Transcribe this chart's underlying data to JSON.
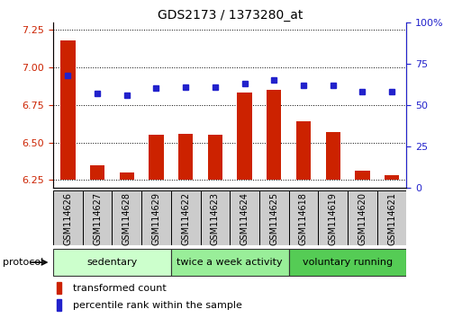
{
  "title": "GDS2173 / 1373280_at",
  "samples": [
    "GSM114626",
    "GSM114627",
    "GSM114628",
    "GSM114629",
    "GSM114622",
    "GSM114623",
    "GSM114624",
    "GSM114625",
    "GSM114618",
    "GSM114619",
    "GSM114620",
    "GSM114621"
  ],
  "transformed_count": [
    7.18,
    6.35,
    6.3,
    6.55,
    6.56,
    6.55,
    6.83,
    6.85,
    6.64,
    6.57,
    6.31,
    6.28
  ],
  "percentile_rank": [
    68,
    57,
    56,
    60,
    61,
    61,
    63,
    65,
    62,
    62,
    58,
    58
  ],
  "bar_color": "#cc2200",
  "dot_color": "#2222cc",
  "ylim_left": [
    6.2,
    7.3
  ],
  "ylim_right": [
    0,
    100
  ],
  "yticks_left": [
    6.25,
    6.5,
    6.75,
    7.0,
    7.25
  ],
  "yticks_right": [
    0,
    25,
    50,
    75,
    100
  ],
  "ytick_labels_right": [
    "0",
    "25",
    "50",
    "75",
    "100%"
  ],
  "groups": [
    {
      "label": "sedentary",
      "start": 0,
      "end": 4,
      "color": "#ccffcc"
    },
    {
      "label": "twice a week activity",
      "start": 4,
      "end": 8,
      "color": "#99ee99"
    },
    {
      "label": "voluntary running",
      "start": 8,
      "end": 12,
      "color": "#55cc55"
    }
  ],
  "protocol_label": "protocol",
  "legend_items": [
    {
      "label": "transformed count",
      "color": "#cc2200"
    },
    {
      "label": "percentile rank within the sample",
      "color": "#2222cc"
    }
  ],
  "bar_bottom": 6.25,
  "left_axis_color": "#cc2200",
  "right_axis_color": "#2222cc",
  "xticklabel_fontsize": 7,
  "sample_box_color": "#cccccc",
  "bar_width": 0.5
}
